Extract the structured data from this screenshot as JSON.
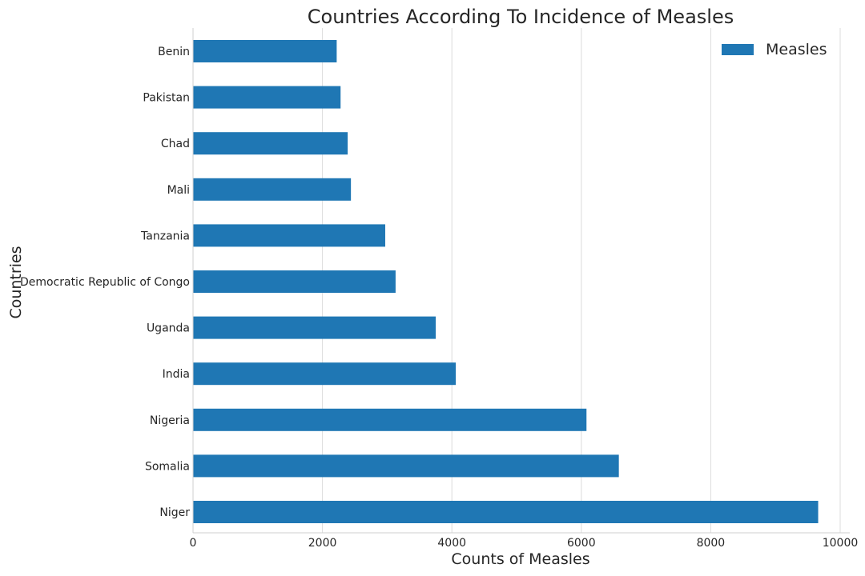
{
  "chart_data": {
    "type": "bar",
    "orientation": "horizontal",
    "title": "Countries According To Incidence of Measles",
    "xlabel": "Counts of Measles",
    "ylabel": "Countries",
    "xlim": [
      0,
      10000
    ],
    "x_ticks": [
      "0",
      "2000",
      "4000",
      "6000",
      "8000",
      "10000"
    ],
    "x_tick_values": [
      0,
      2000,
      4000,
      6000,
      8000,
      10000
    ],
    "grid": "vertical",
    "legend_position": "top-right",
    "bar_color": "#1f77b4",
    "categories": [
      "Niger",
      "Somalia",
      "Nigeria",
      "India",
      "Uganda",
      "Democratic Republic of Congo",
      "Tanzania",
      "Mali",
      "Chad",
      "Pakistan",
      "Benin"
    ],
    "series": [
      {
        "name": "Measles",
        "values": [
          9660,
          6580,
          6080,
          4060,
          3750,
          3130,
          2970,
          2440,
          2390,
          2280,
          2220
        ]
      }
    ]
  }
}
